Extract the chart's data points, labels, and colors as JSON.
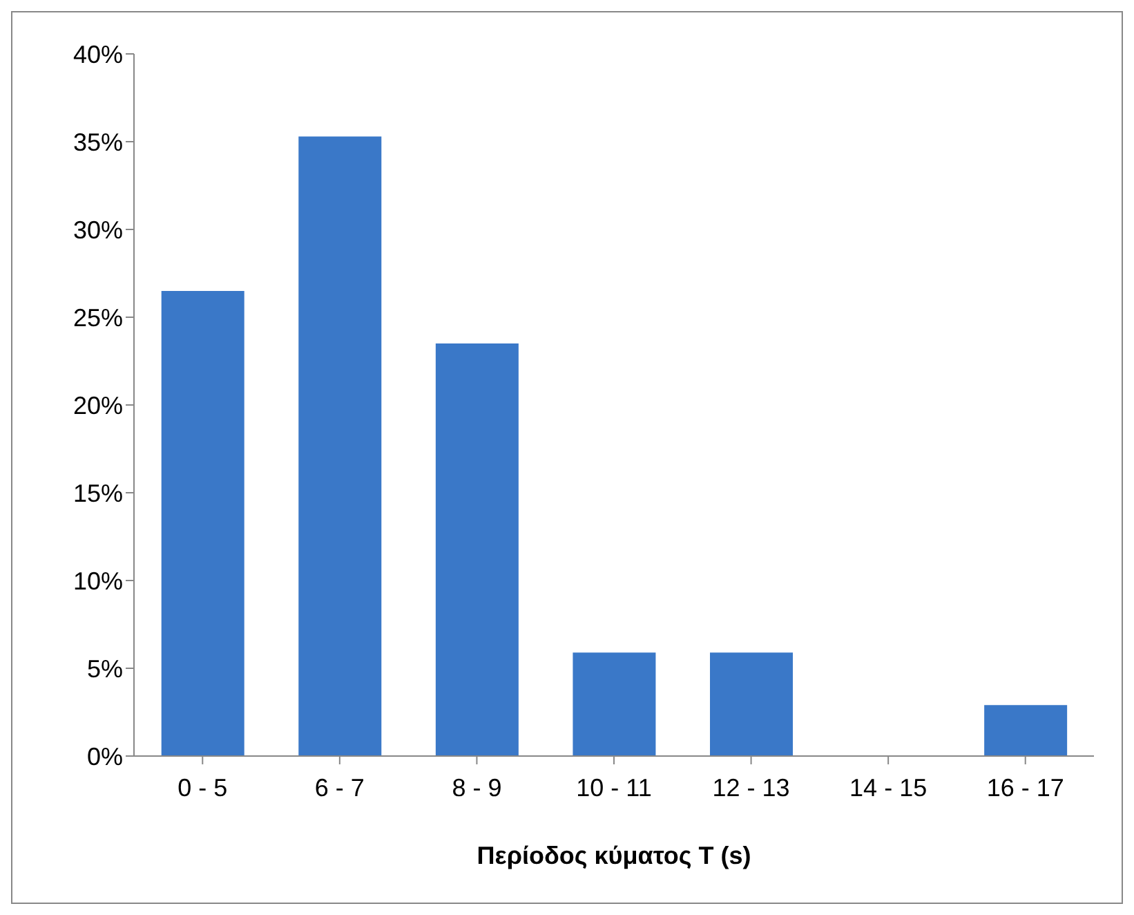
{
  "chart_data": {
    "type": "bar",
    "xlabel": "Περίοδος κύματος T (s)",
    "categories": [
      "0 - 5",
      "6 - 7",
      "8 - 9",
      "10 - 11",
      "12 - 13",
      "14 - 15",
      "16 - 17"
    ],
    "values": [
      26.5,
      35.3,
      23.5,
      5.9,
      5.9,
      0,
      2.9
    ],
    "color": "#3a78c8",
    "ylim": [
      0,
      40
    ],
    "yticks": [
      {
        "value": 0,
        "label": "0%"
      },
      {
        "value": 5,
        "label": "5%"
      },
      {
        "value": 10,
        "label": "10%"
      },
      {
        "value": 15,
        "label": "15%"
      },
      {
        "value": 20,
        "label": "20%"
      },
      {
        "value": 25,
        "label": "25%"
      },
      {
        "value": 30,
        "label": "30%"
      },
      {
        "value": 35,
        "label": "35%"
      },
      {
        "value": 40,
        "label": "40%"
      }
    ],
    "grid": false,
    "legend": false
  }
}
